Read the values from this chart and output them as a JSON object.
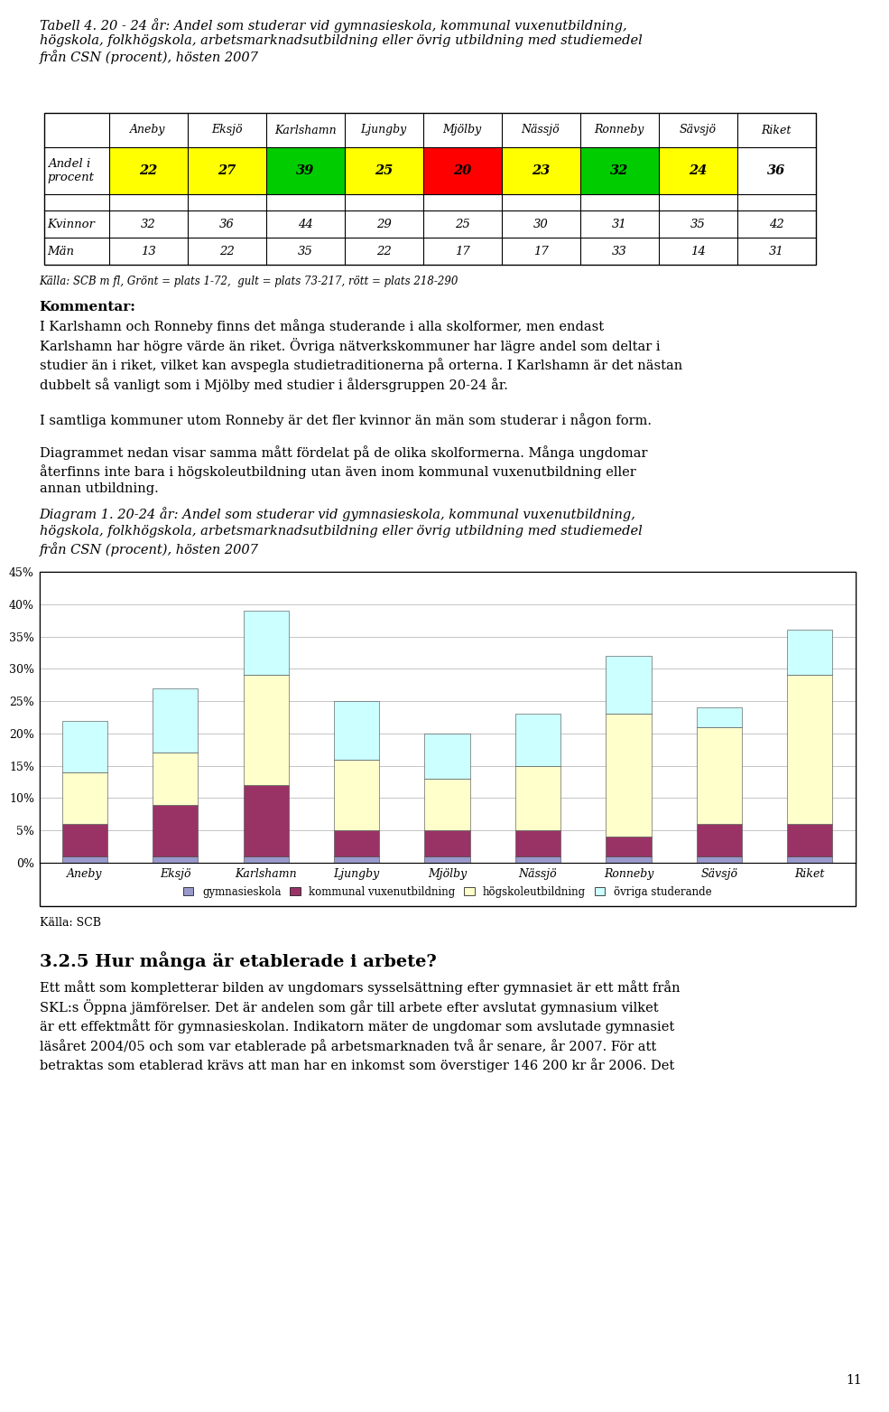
{
  "title_tabell": "Tabell 4. 20 - 24 år: Andel som studerar vid gymnasieskola, kommunal vuxenutbildning,\nhögskola, folkhögskola, arbetsmarknadsutbildning eller övrig utbildning med studiemedel\nfrån CSN (procent), hösten 2007",
  "municipalities": [
    "Aneby",
    "Eksjö",
    "Karlshamn",
    "Ljungby",
    "Mjölby",
    "Nässjö",
    "Ronneby",
    "Sävsjö",
    "Riket"
  ],
  "andel": [
    22,
    27,
    39,
    25,
    20,
    23,
    32,
    24,
    36
  ],
  "andel_colors": [
    "#FFFF00",
    "#FFFF00",
    "#00CC00",
    "#FFFF00",
    "#FF0000",
    "#FFFF00",
    "#00CC00",
    "#FFFF00",
    "#FFFFFF"
  ],
  "kvinnor": [
    32,
    36,
    44,
    29,
    25,
    30,
    31,
    35,
    42
  ],
  "man": [
    13,
    22,
    35,
    22,
    17,
    17,
    33,
    14,
    31
  ],
  "kalla_tabell": "Källa: SCB m fl, Grönt = plats 1-72,  gult = plats 73-217, rött = plats 218-290",
  "kommentar_header": "Kommentar:",
  "kommentar_line1": "I Karlshamn och Ronneby finns det många studerande i àlla skolformer, men endast",
  "kommentar_line1_plain": "I Karlshamn och Ronneby finns det många studerande i ",
  "kommentar_line1_italic": "alla",
  "kommentar_line1_rest": " skolformer, men endast",
  "kommentar_text": "I Karlshamn och Ronneby finns det många studerande i alla skolformer, men endast\nKarlshamn har högre värde än riket. Övriga nätverkskommuner har lägre andel som deltar i\nstudier än i riket, vilket kan avspegla studietraditionerna på orterna. I Karlshamn är det nästan\ndubbelt så vanligt som i Mjölby med studier i åldersgruppen 20-24 år.\n\nI samtliga kommuner utom Ronneby är det fler kvinnor än män som studerar i någon form.",
  "diag_intro": "Diagrammet nedan visar samma mått fördelat på de olika skolformerna. Många ungdomar\nåterfinns inte bara i högskoleutbildning utan även inom kommunal vuxenutbildning eller\nannan utbildning.",
  "diagram_caption": "Diagram 1. 20-24 år: Andel som studerar vid gymnasieskola, kommunal vuxenutbildning,\nhögskola, folkhögskola, arbetsmarknadsutbildning eller övrig utbildning med studiemedel\nfrån CSN (procent), hösten 2007",
  "bar_gymnasieskola": [
    1,
    1,
    1,
    1,
    1,
    1,
    1,
    1,
    1
  ],
  "bar_kommunal": [
    5,
    8,
    11,
    4,
    4,
    4,
    3,
    5,
    5
  ],
  "bar_hogskola": [
    8,
    8,
    17,
    11,
    8,
    10,
    19,
    15,
    23
  ],
  "bar_ovriga": [
    8,
    10,
    10,
    9,
    7,
    8,
    9,
    3,
    7
  ],
  "color_gymnasieskola": "#9999CC",
  "color_kommunal": "#993366",
  "color_hogskola": "#FFFFCC",
  "color_ovriga": "#CCFFFF",
  "legend_labels": [
    "gymnasieskola",
    "kommunal vuxenutbildning",
    "högskoleutbildning",
    "övriga studerande"
  ],
  "kalla_diagram": "Källa: SCB",
  "section_header": "3.2.5 Hur många är etablerade i arbete?",
  "section_text": "Ett mått som kompletterar bilden av ungdomars sysselsättning efter gymnasiet är ett mått från\nSKL:s Öppna jämförelser. Det är andelen som går till arbete efter avslutat gymnasium vilket\när ett effektmått för gymnasieskolan. Indikatorn mäter de ungdomar som avslutade gymnasiet\nläsåret 2004/05 och som var etablerade på arbetsmarknaden två år senare, år 2007. För att\nbetraktas som etablerad krävs att man har en inkomst som överstiger 146 200 kr år 2006. Det",
  "page_number": "11",
  "yticks_chart": [
    0,
    5,
    10,
    15,
    20,
    25,
    30,
    35,
    40,
    45
  ]
}
